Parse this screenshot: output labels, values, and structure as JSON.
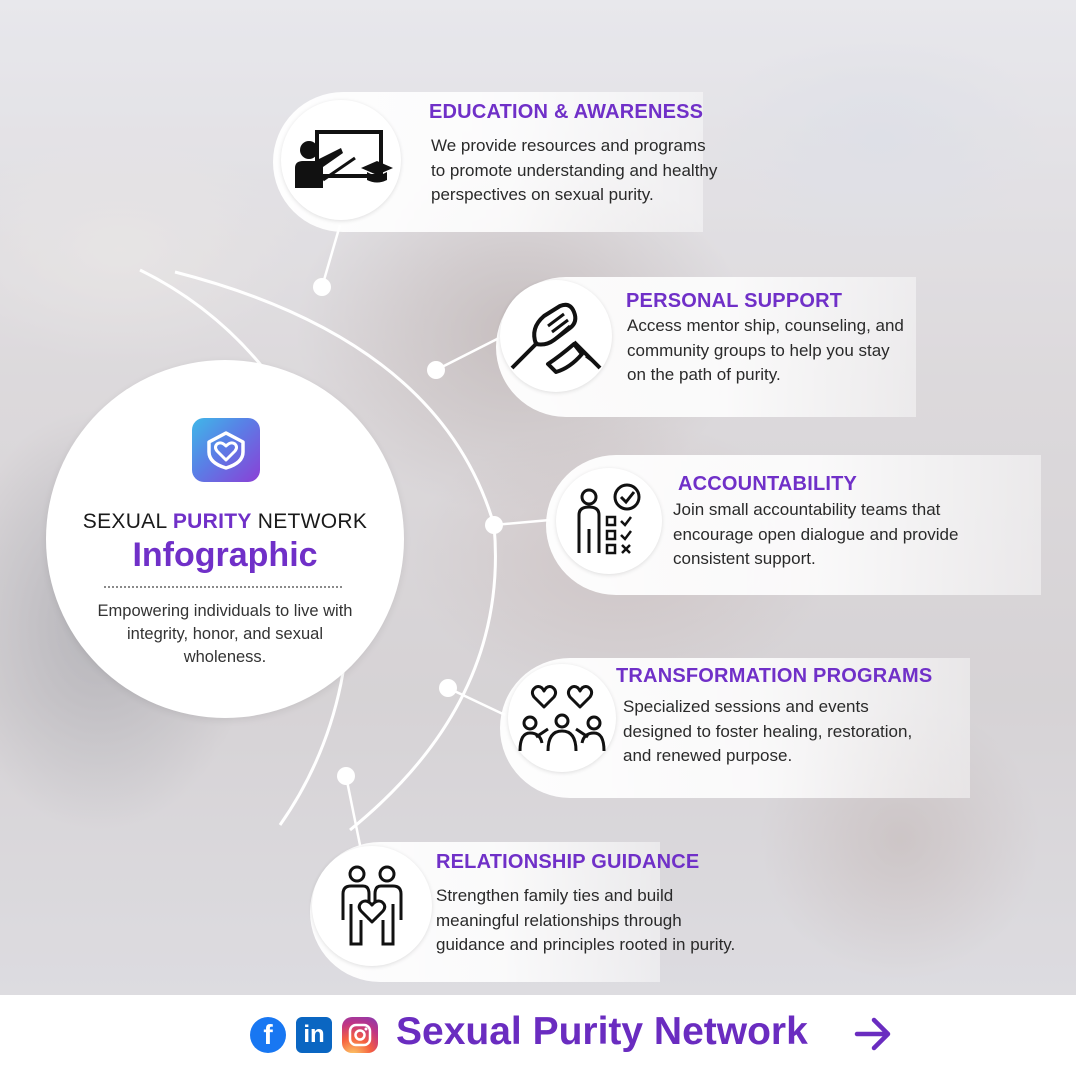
{
  "hub": {
    "title_pre": "SEXUAL ",
    "title_accent": "PURITY",
    "title_post": " NETWORK",
    "subtitle": "Infographic",
    "description": "Empowering individuals to live with integrity, honor, and sexual wholeness."
  },
  "items": [
    {
      "title": "EDUCATION & AWARENESS",
      "description": "We provide resources and programs\nto promote understanding and healthy\nperspectives on sexual purity.",
      "icon": "teacher-blackboard-icon"
    },
    {
      "title": "PERSONAL SUPPORT",
      "description": "Access mentor ship, counseling, and\ncommunity groups to help you stay\non the path of purity.",
      "icon": "handshake-icon"
    },
    {
      "title": "ACCOUNTABILITY",
      "description": "Join small accountability teams that\n encourage open dialogue and provide\nconsistent support.",
      "icon": "checklist-person-icon"
    },
    {
      "title": "TRANSFORMATION PROGRAMS",
      "description": "Specialized sessions and events\ndesigned to foster healing, restoration,\nand renewed purpose.",
      "icon": "group-hearts-icon"
    },
    {
      "title": "RELATIONSHIP GUIDANCE",
      "description": "Strengthen family ties and build\nmeaningful relationships through\nguidance and principles rooted in purity.",
      "icon": "couple-heart-icon"
    }
  ],
  "footer": {
    "brand": "Sexual Purity Network",
    "linkedin_label": "in",
    "facebook_label": "f",
    "arrow": "→"
  },
  "colors": {
    "accent": "#7030c8",
    "facebook": "#1877f2",
    "linkedin": "#0a66c2"
  }
}
